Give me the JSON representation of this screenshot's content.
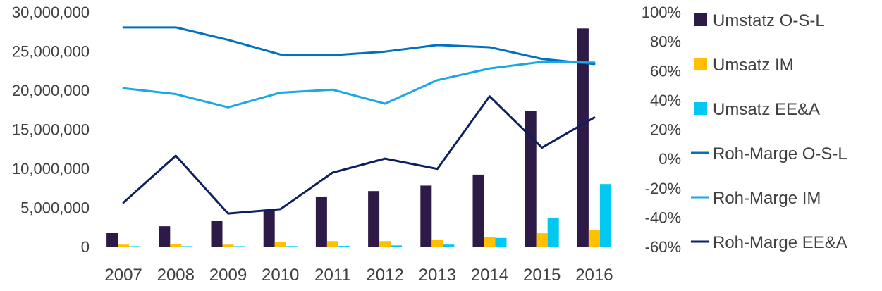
{
  "chart_data": {
    "type": "bar",
    "categories": [
      "2007",
      "2008",
      "2009",
      "2010",
      "2011",
      "2012",
      "2013",
      "2014",
      "2015",
      "2016"
    ],
    "series": [
      {
        "name": "Umstatz O-S-L",
        "kind": "bar",
        "axis": "left",
        "color": "#2d1a47",
        "values": [
          1800000,
          2600000,
          3300000,
          4700000,
          6400000,
          7100000,
          7800000,
          9200000,
          17300000,
          27900000
        ]
      },
      {
        "name": "Umsatz IM",
        "kind": "bar",
        "axis": "left",
        "color": "#ffc000",
        "values": [
          250000,
          350000,
          250000,
          550000,
          700000,
          700000,
          900000,
          1250000,
          1700000,
          2100000
        ]
      },
      {
        "name": "Umsatz EE&A",
        "kind": "bar",
        "axis": "left",
        "color": "#00c8f0",
        "values": [
          50000,
          50000,
          50000,
          60000,
          80000,
          150000,
          250000,
          1100000,
          3700000,
          8000000
        ]
      },
      {
        "name": "Roh-Marge O-S-L",
        "kind": "line",
        "axis": "right",
        "color": "#0070c0",
        "values": [
          0.895,
          0.895,
          0.81,
          0.71,
          0.705,
          0.73,
          0.775,
          0.76,
          0.68,
          0.645
        ]
      },
      {
        "name": "Roh-Marge IM",
        "kind": "line",
        "axis": "right",
        "color": "#1aa7e8",
        "values": [
          0.48,
          0.44,
          0.35,
          0.45,
          0.47,
          0.375,
          0.535,
          0.615,
          0.66,
          0.655
        ]
      },
      {
        "name": "Roh-Marge EE&A",
        "kind": "line",
        "axis": "right",
        "color": "#0d1f5c",
        "values": [
          -0.3,
          0.02,
          -0.375,
          -0.345,
          -0.095,
          0.0,
          -0.07,
          0.425,
          0.075,
          0.28
        ]
      }
    ],
    "y_left": {
      "range": [
        0,
        30000000
      ],
      "ticks": [
        "0",
        "5,000,000",
        "10,000,000",
        "15,000,000",
        "20,000,000",
        "25,000,000",
        "30,000,000"
      ]
    },
    "y_right": {
      "range": [
        -0.6,
        1.0
      ],
      "ticks": [
        "-60%",
        "-40%",
        "-20%",
        "0%",
        "20%",
        "40%",
        "60%",
        "80%",
        "100%"
      ]
    },
    "grid": false,
    "legend": "right"
  }
}
